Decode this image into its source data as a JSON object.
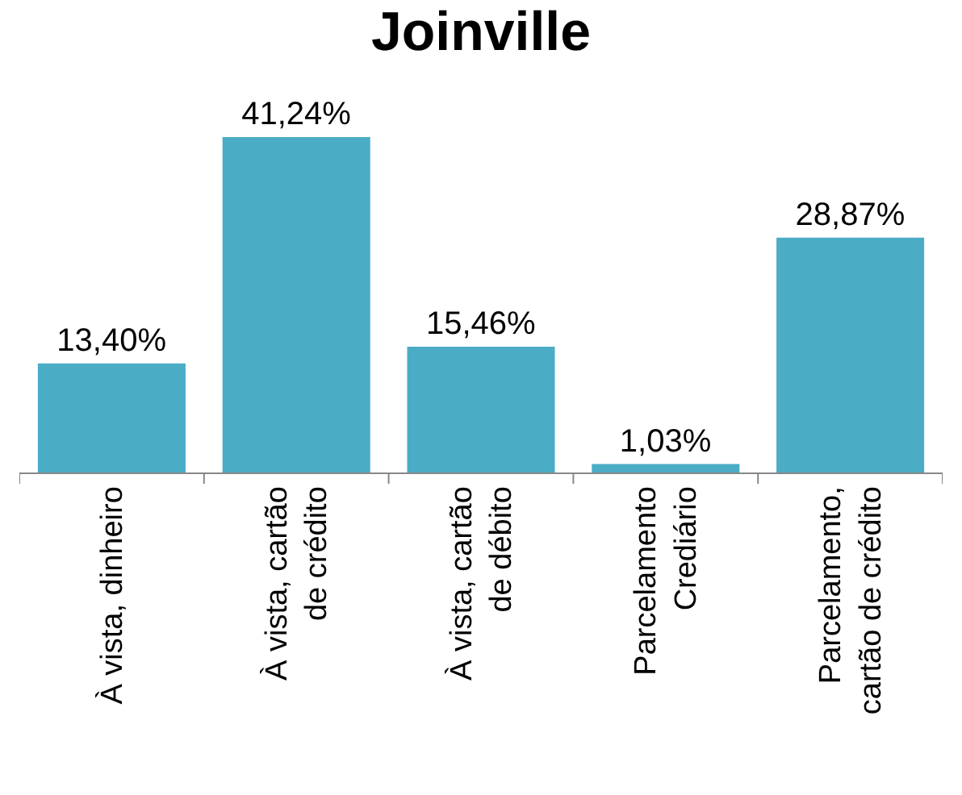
{
  "chart_data": {
    "type": "bar",
    "title": "Joinville",
    "categories": [
      "À vista, dinheiro",
      "À vista, cartão de crédito",
      "À vista, cartão de débito",
      "Parcelamento Crediário",
      "Parcelamento, cartão de crédito"
    ],
    "values": [
      13.4,
      41.24,
      15.46,
      1.03,
      28.87
    ],
    "value_labels": [
      "13,40%",
      "41,24%",
      "15,46%",
      "1,03%",
      "28,87%"
    ],
    "color": "#4bacc6"
  }
}
